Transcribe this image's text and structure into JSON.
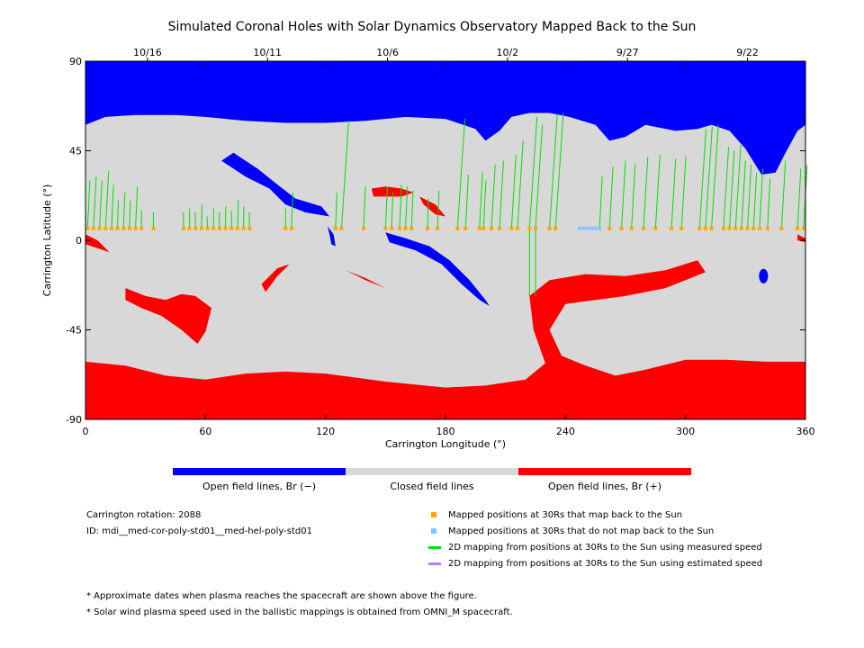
{
  "chart_data": {
    "type": "map",
    "title": "Simulated Coronal Holes with Solar Dynamics Observatory Mapped Back to the Sun",
    "xlabel": "Carrington Longitude (°)",
    "ylabel": "Carrington Latitude (°)",
    "xlim": [
      0,
      360
    ],
    "ylim": [
      -90,
      90
    ],
    "xticks": [
      0,
      60,
      120,
      180,
      240,
      300,
      360
    ],
    "yticks": [
      90,
      45,
      0,
      -45,
      -90
    ],
    "ytick_labels": [
      "90",
      "45",
      "0",
      "-45",
      "-90"
    ],
    "top_dates": [
      {
        "label": "10/16",
        "lon": 31
      },
      {
        "label": "10/11",
        "lon": 91
      },
      {
        "label": "10/6",
        "lon": 151
      },
      {
        "label": "10/2",
        "lon": 211
      },
      {
        "label": "9/27",
        "lon": 271
      },
      {
        "label": "9/22",
        "lon": 331
      }
    ],
    "colors": {
      "open_negative": "#0000ff",
      "closed": "#d8d8d8",
      "open_positive": "#ff0000",
      "mapped": "#ffa500",
      "unmapped": "#87c5ff",
      "measured_line": "#00e000",
      "estimated_line": "#b080ff"
    },
    "mapped_lons": [
      1,
      4,
      7,
      10,
      13,
      16,
      19,
      22,
      25,
      28,
      34,
      49,
      52,
      55,
      58,
      61,
      64,
      67,
      70,
      73,
      76,
      79,
      82,
      100,
      103,
      125,
      128,
      139,
      150,
      153,
      157,
      160,
      163,
      171,
      176,
      186,
      190,
      197,
      199,
      203,
      207,
      213,
      216,
      222,
      225,
      232,
      235,
      257,
      262,
      268,
      273,
      279,
      285,
      293,
      298,
      307,
      310,
      313,
      319,
      322,
      325,
      328,
      331,
      334,
      337,
      341,
      348,
      356,
      359
    ],
    "unmapped_lons": [
      247,
      249,
      251,
      253,
      255,
      257
    ],
    "green_lines": [
      [
        1,
        30
      ],
      [
        4,
        32
      ],
      [
        7,
        30
      ],
      [
        10,
        35
      ],
      [
        13,
        28
      ],
      [
        16,
        20
      ],
      [
        19,
        24
      ],
      [
        22,
        20
      ],
      [
        25,
        27
      ],
      [
        28,
        15
      ],
      [
        34,
        14
      ],
      [
        49,
        14
      ],
      [
        52,
        16
      ],
      [
        55,
        14
      ],
      [
        58,
        18
      ],
      [
        61,
        12
      ],
      [
        64,
        16
      ],
      [
        67,
        14
      ],
      [
        70,
        17
      ],
      [
        73,
        15
      ],
      [
        76,
        20
      ],
      [
        79,
        17
      ],
      [
        82,
        14
      ],
      [
        100,
        16
      ],
      [
        103,
        24
      ],
      [
        125,
        24
      ],
      [
        128,
        60
      ],
      [
        139,
        27
      ],
      [
        150,
        27
      ],
      [
        153,
        24
      ],
      [
        157,
        28
      ],
      [
        160,
        27
      ],
      [
        163,
        25
      ],
      [
        171,
        21
      ],
      [
        176,
        25
      ],
      [
        186,
        61
      ],
      [
        190,
        33
      ],
      [
        197,
        34
      ],
      [
        199,
        30
      ],
      [
        203,
        38
      ],
      [
        207,
        40
      ],
      [
        213,
        43
      ],
      [
        216,
        50
      ],
      [
        222,
        62
      ],
      [
        225,
        58
      ],
      [
        232,
        63
      ],
      [
        235,
        64
      ],
      [
        257,
        32
      ],
      [
        262,
        37
      ],
      [
        268,
        40
      ],
      [
        273,
        38
      ],
      [
        279,
        42
      ],
      [
        285,
        43
      ],
      [
        293,
        41
      ],
      [
        298,
        42
      ],
      [
        307,
        56
      ],
      [
        310,
        57
      ],
      [
        313,
        58
      ],
      [
        319,
        47
      ],
      [
        322,
        45
      ],
      [
        325,
        48
      ],
      [
        328,
        40
      ],
      [
        331,
        38
      ],
      [
        334,
        34
      ],
      [
        337,
        36
      ],
      [
        341,
        31
      ],
      [
        348,
        40
      ],
      [
        356,
        36
      ],
      [
        359,
        38
      ]
    ],
    "green_down_lines": [
      [
        222,
        -28
      ],
      [
        225,
        -28
      ]
    ],
    "blue_upper_boundary": [
      [
        0,
        58
      ],
      [
        10,
        62
      ],
      [
        25,
        63
      ],
      [
        45,
        63
      ],
      [
        60,
        62
      ],
      [
        80,
        60
      ],
      [
        100,
        59
      ],
      [
        120,
        59
      ],
      [
        140,
        60
      ],
      [
        160,
        62
      ],
      [
        180,
        61
      ],
      [
        195,
        56
      ],
      [
        200,
        50
      ],
      [
        207,
        55
      ],
      [
        213,
        62
      ],
      [
        222,
        64
      ],
      [
        232,
        64
      ],
      [
        242,
        62
      ],
      [
        255,
        58
      ],
      [
        262,
        50
      ],
      [
        270,
        52
      ],
      [
        280,
        58
      ],
      [
        295,
        55
      ],
      [
        306,
        56
      ],
      [
        313,
        58
      ],
      [
        322,
        55
      ],
      [
        330,
        46
      ],
      [
        338,
        33
      ],
      [
        345,
        34
      ],
      [
        350,
        44
      ],
      [
        356,
        55
      ],
      [
        360,
        58
      ]
    ],
    "red_lower_boundary": [
      [
        0,
        -61
      ],
      [
        20,
        -63
      ],
      [
        40,
        -68
      ],
      [
        60,
        -70
      ],
      [
        80,
        -67
      ],
      [
        100,
        -66
      ],
      [
        120,
        -67
      ],
      [
        150,
        -71
      ],
      [
        180,
        -74
      ],
      [
        200,
        -73
      ],
      [
        220,
        -70
      ],
      [
        232,
        -60
      ],
      [
        238,
        -58
      ],
      [
        250,
        -63
      ],
      [
        265,
        -68
      ],
      [
        280,
        -65
      ],
      [
        300,
        -60
      ],
      [
        320,
        -60
      ],
      [
        340,
        -61
      ],
      [
        360,
        -61
      ]
    ],
    "legend_bar": [
      "Open field lines, Br (−)",
      "Closed field lines",
      "Open field lines, Br (+)"
    ],
    "info": [
      "Carrington rotation: 2088",
      "ID: mdi__med-cor-poly-std01__med-hel-poly-std01"
    ],
    "legend_items": [
      "Mapped positions at 30Rs that map back to the Sun",
      "Mapped positions at 30Rs that do not map back to the Sun",
      "2D mapping from positions at 30Rs to the Sun using measured speed",
      "2D mapping from positions at 30Rs to the Sun using estimated speed"
    ],
    "footnotes": [
      "* Approximate dates when plasma reaches the spacecraft are shown above the figure.",
      "* Solar wind plasma speed used in the ballistic mappings is obtained from OMNI_M spacecraft."
    ]
  }
}
